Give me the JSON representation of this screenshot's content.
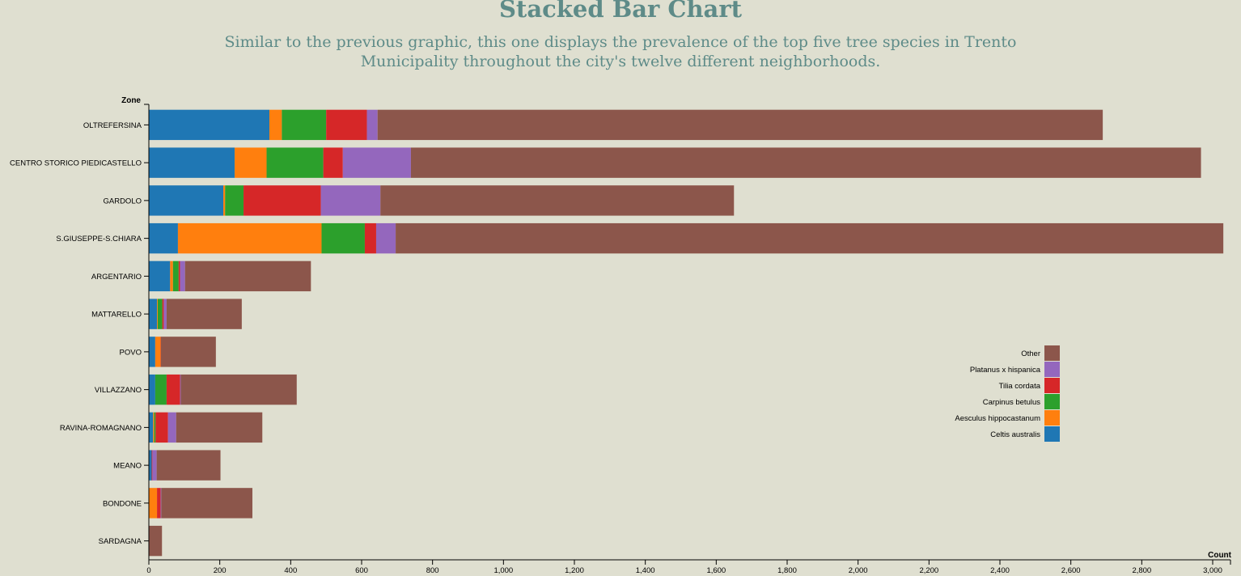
{
  "header": {
    "title": "Stacked Bar Chart",
    "subtitle": "Similar to the previous graphic, this one displays the prevalence of the top five tree species in Trento Municipality throughout the city's twelve different neighborhoods."
  },
  "chart_data": {
    "type": "bar",
    "orientation": "horizontal",
    "stacked": true,
    "ylabel": "Zone",
    "xlabel": "Count",
    "xlim": [
      0,
      3030
    ],
    "xticks": [
      "0",
      "200",
      "400",
      "600",
      "800",
      "1,000",
      "1,200",
      "1,400",
      "1,600",
      "1,800",
      "2,000",
      "2,200",
      "2,400",
      "2,600",
      "2,800",
      "3,000"
    ],
    "grid": false,
    "legend_position": "right-middle",
    "categories": [
      "OLTREFERSINA",
      "CENTRO STORICO PIEDICASTELLO",
      "GARDOLO",
      "S.GIUSEPPE-S.CHIARA",
      "ARGENTARIO",
      "MATTARELLO",
      "POVO",
      "VILLAZZANO",
      "RAVINA-ROMAGNANO",
      "MEANO",
      "BONDONE",
      "SARDAGNA"
    ],
    "series": [
      {
        "name": "Celtis australis",
        "color": "#1f77b4",
        "values": [
          340,
          242,
          210,
          82,
          60,
          23,
          18,
          18,
          12,
          8,
          1,
          0
        ]
      },
      {
        "name": "Aesculus hippocastanum",
        "color": "#ff7f0e",
        "values": [
          35,
          90,
          5,
          405,
          8,
          2,
          15,
          0,
          3,
          0,
          22,
          0
        ]
      },
      {
        "name": "Carpinus betulus",
        "color": "#2ca02c",
        "values": [
          125,
          160,
          52,
          122,
          16,
          13,
          0,
          32,
          4,
          0,
          0,
          0
        ]
      },
      {
        "name": "Tilia cordata",
        "color": "#d62728",
        "values": [
          115,
          55,
          218,
          32,
          4,
          4,
          1,
          38,
          35,
          2,
          10,
          0
        ]
      },
      {
        "name": "Platanus x hispanica",
        "color": "#9467bd",
        "values": [
          30,
          192,
          168,
          55,
          14,
          8,
          0,
          2,
          23,
          12,
          2,
          0
        ]
      },
      {
        "name": "Other",
        "color": "#8c564b",
        "values": [
          2045,
          2228,
          997,
          2334,
          355,
          212,
          155,
          327,
          243,
          180,
          257,
          37
        ]
      }
    ]
  }
}
